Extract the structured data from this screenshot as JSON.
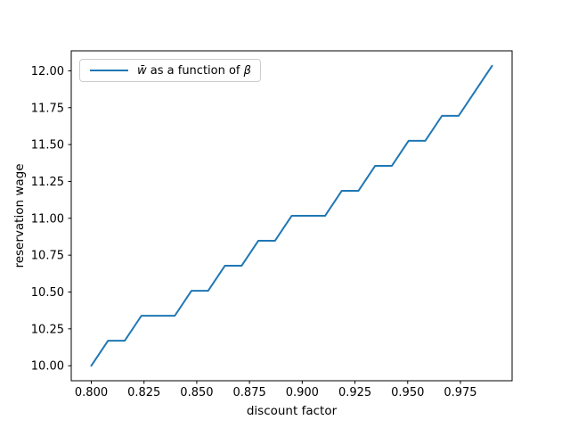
{
  "figure": {
    "background": "#ffffff"
  },
  "axes": {
    "xlabel": "discount factor",
    "ylabel": "reservation wage"
  },
  "legend": {
    "position": "upper left",
    "label_math_w": "w̄",
    "label_mid": " as a function of ",
    "label_math_beta": "β",
    "full_label": "w̄ as a function of β",
    "line_color": "#1f77b4"
  },
  "chart_data": {
    "type": "line",
    "title": "",
    "xlabel": "discount factor",
    "ylabel": "reservation wage",
    "grid": false,
    "legend_position": "upper left",
    "xlim": [
      0.7905,
      0.9995
    ],
    "ylim": [
      9.8983,
      12.1356
    ],
    "xticks": {
      "values": [
        0.8,
        0.825,
        0.85,
        0.875,
        0.9,
        0.925,
        0.95,
        0.975
      ],
      "labels": [
        "0.800",
        "0.825",
        "0.850",
        "0.875",
        "0.900",
        "0.925",
        "0.950",
        "0.975"
      ]
    },
    "yticks": {
      "values": [
        10.0,
        10.25,
        10.5,
        10.75,
        11.0,
        11.25,
        11.5,
        11.75,
        12.0
      ],
      "labels": [
        "10.00",
        "10.25",
        "10.50",
        "10.75",
        "11.00",
        "11.25",
        "11.50",
        "11.75",
        "12.00"
      ]
    },
    "series": [
      {
        "name": "w̄ as a function of β",
        "color": "#1f77b4",
        "line_width": 2,
        "x": [
          0.8,
          0.807917,
          0.815833,
          0.82375,
          0.831667,
          0.839583,
          0.8475,
          0.855417,
          0.863333,
          0.87125,
          0.879167,
          0.887083,
          0.895,
          0.902917,
          0.910833,
          0.91875,
          0.926667,
          0.934583,
          0.9425,
          0.950417,
          0.958333,
          0.96625,
          0.974167,
          0.982083,
          0.99
        ],
        "y": [
          10.0,
          10.1695,
          10.1695,
          10.339,
          10.339,
          10.339,
          10.5085,
          10.5085,
          10.678,
          10.678,
          10.8475,
          10.8475,
          11.0169,
          11.0169,
          11.0169,
          11.1864,
          11.1864,
          11.3559,
          11.3559,
          11.5254,
          11.5254,
          11.6949,
          11.6949,
          11.8644,
          12.0339
        ]
      }
    ]
  }
}
